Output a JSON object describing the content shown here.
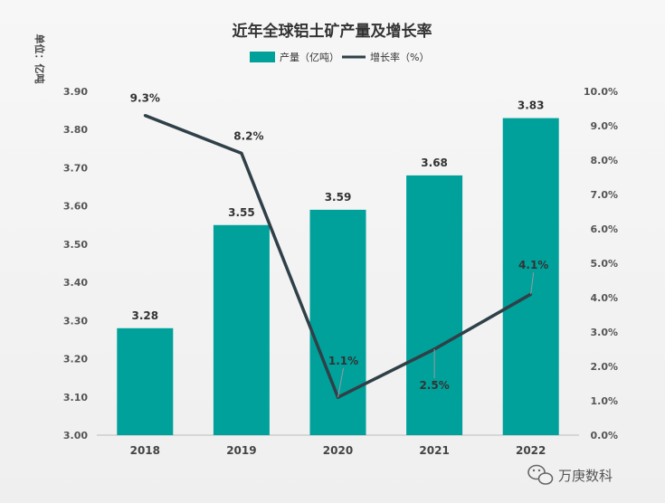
{
  "chart_data": {
    "type": "bar",
    "title": "近年全球铝土矿产量及增长率",
    "unit_label": "单位：亿吨",
    "categories": [
      "2018",
      "2019",
      "2020",
      "2021",
      "2022"
    ],
    "series": [
      {
        "name": "产量（亿吨）",
        "type": "bar",
        "axis": "left",
        "color": "#00A19B",
        "values": [
          3.28,
          3.55,
          3.59,
          3.68,
          3.83
        ],
        "labels": [
          "3.28",
          "3.55",
          "3.59",
          "3.68",
          "3.83"
        ]
      },
      {
        "name": "增长率（%）",
        "type": "line",
        "axis": "right",
        "color": "#2F4048",
        "values": [
          9.3,
          8.2,
          1.1,
          2.5,
          4.1
        ],
        "labels": [
          "9.3%",
          "8.2%",
          "1.1%",
          "2.5%",
          "4.1%"
        ]
      }
    ],
    "y_left": {
      "min": 3.0,
      "max": 3.9,
      "ticks": [
        3.0,
        3.1,
        3.2,
        3.3,
        3.4,
        3.5,
        3.6,
        3.7,
        3.8,
        3.9
      ],
      "tick_labels": [
        "3.00",
        "3.10",
        "3.20",
        "3.30",
        "3.40",
        "3.50",
        "3.60",
        "3.70",
        "3.80",
        "3.90"
      ]
    },
    "y_right": {
      "min": 0,
      "max": 10,
      "ticks": [
        0,
        1,
        2,
        3,
        4,
        5,
        6,
        7,
        8,
        9,
        10
      ],
      "tick_labels": [
        "0.0%",
        "1.0%",
        "2.0%",
        "3.0%",
        "4.0%",
        "5.0%",
        "6.0%",
        "7.0%",
        "8.0%",
        "9.0%",
        "10.0%"
      ]
    },
    "legend_position": "top-center",
    "grid": false
  },
  "watermark": {
    "text": "万庚数科",
    "icon": "wechat-icon"
  }
}
